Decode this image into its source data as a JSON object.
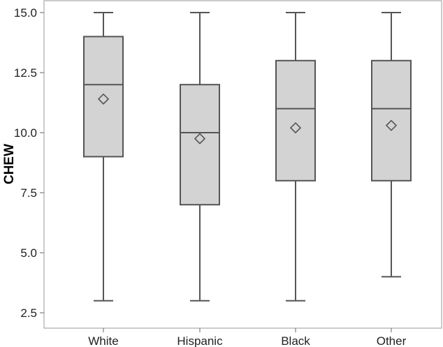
{
  "chart_data": {
    "type": "boxplot",
    "title": "",
    "xlabel": "",
    "ylabel": "CHEW",
    "ylim": [
      2.5,
      15.0
    ],
    "yticks": [
      "2.5",
      "5.0",
      "7.5",
      "10.0",
      "12.5",
      "15.0"
    ],
    "grid": false,
    "legend": "none",
    "categories": [
      "White",
      "Hispanic",
      "Black",
      "Other"
    ],
    "boxes": [
      {
        "category": "White",
        "whisker_low": 3,
        "q1": 9,
        "median": 12,
        "q3": 14,
        "whisker_high": 15,
        "mean": 11.4
      },
      {
        "category": "Hispanic",
        "whisker_low": 3,
        "q1": 7,
        "median": 10,
        "q3": 12,
        "whisker_high": 15,
        "mean": 9.75
      },
      {
        "category": "Black",
        "whisker_low": 3,
        "q1": 8,
        "median": 11,
        "q3": 13,
        "whisker_high": 15,
        "mean": 10.2
      },
      {
        "category": "Other",
        "whisker_low": 4,
        "q1": 8,
        "median": 11,
        "q3": 13,
        "whisker_high": 15,
        "mean": 10.3
      }
    ],
    "colors": {
      "box_fill": "#d3d3d3",
      "stroke": "#555555",
      "frame": "#aaaaaa"
    }
  }
}
